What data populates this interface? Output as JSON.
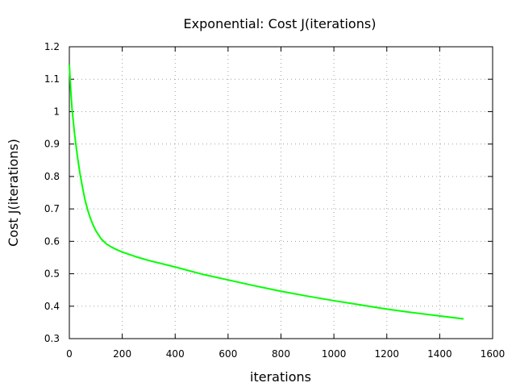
{
  "chart_data": {
    "type": "line",
    "title": "Exponential: Cost J(iterations)",
    "xlabel": "iterations",
    "ylabel": "Cost J(iterations)",
    "xlim": [
      0,
      1600
    ],
    "ylim": [
      0.3,
      1.2
    ],
    "xticks": [
      0,
      200,
      400,
      600,
      800,
      1000,
      1200,
      1400,
      1600
    ],
    "yticks": [
      0.3,
      0.4,
      0.5,
      0.6,
      0.7,
      0.8,
      0.9,
      1,
      1.1,
      1.2
    ],
    "grid": true,
    "legend": "none",
    "series": [
      {
        "color": "#00ff00",
        "x": [
          0,
          5,
          10,
          20,
          30,
          40,
          50,
          60,
          70,
          80,
          90,
          100,
          120,
          140,
          160,
          180,
          200,
          250,
          300,
          400,
          500,
          600,
          700,
          800,
          900,
          1000,
          1100,
          1200,
          1300,
          1400,
          1490
        ],
        "y": [
          1.145,
          1.07,
          1.01,
          0.93,
          0.865,
          0.81,
          0.765,
          0.725,
          0.695,
          0.67,
          0.65,
          0.633,
          0.608,
          0.592,
          0.582,
          0.574,
          0.567,
          0.553,
          0.541,
          0.521,
          0.499,
          0.481,
          0.463,
          0.446,
          0.431,
          0.417,
          0.404,
          0.391,
          0.38,
          0.37,
          0.361
        ]
      }
    ]
  }
}
